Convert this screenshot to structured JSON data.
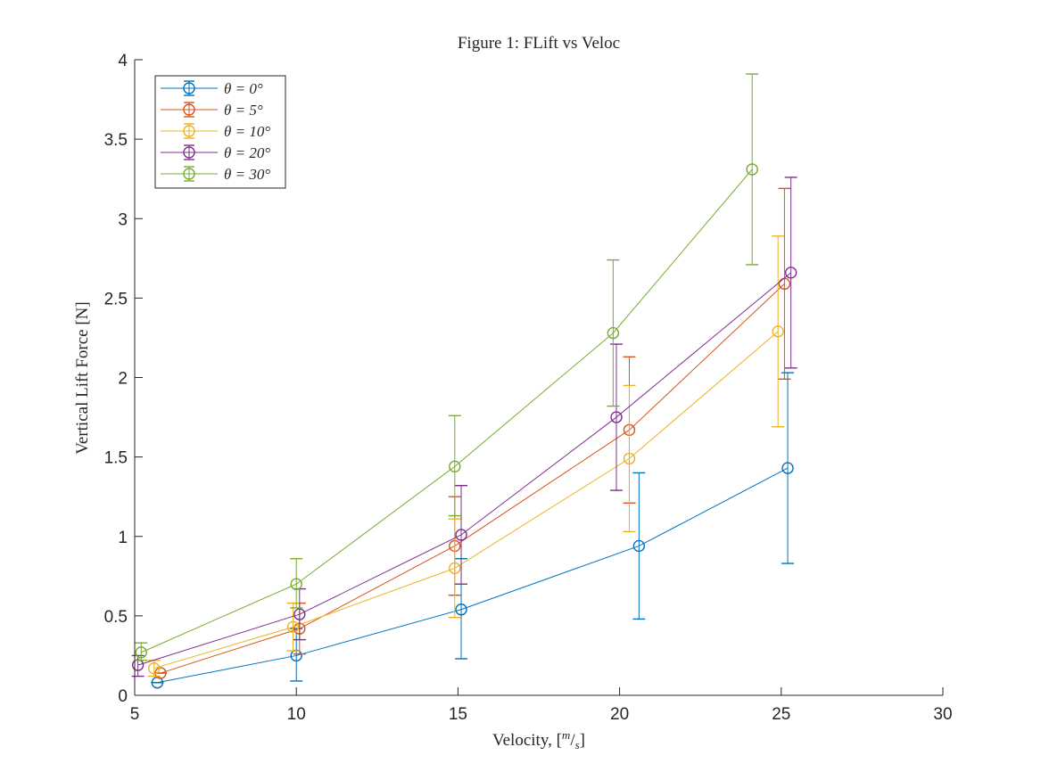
{
  "chart_data": {
    "type": "line",
    "title": "Figure 1: FLift vs Veloc",
    "xlabel": "Velocity, [m/s]",
    "xlabel_parts": {
      "main": "Velocity, [",
      "unit_num": "m",
      "unit_sep": "/",
      "unit_den": "s",
      "close": "]"
    },
    "ylabel": "Vertical Lift Force [N]",
    "xlim": [
      5,
      30
    ],
    "ylim": [
      0,
      4
    ],
    "xticks": [
      5,
      10,
      15,
      20,
      25,
      30
    ],
    "xtick_labels": [
      "5",
      "10",
      "15",
      "20",
      "25",
      "30"
    ],
    "yticks": [
      0,
      0.5,
      1,
      1.5,
      2,
      2.5,
      3,
      3.5,
      4
    ],
    "ytick_labels": [
      "0",
      "0.5",
      "1",
      "1.5",
      "2",
      "2.5",
      "3",
      "3.5",
      "4"
    ],
    "grid": false,
    "legend_position": "top-left",
    "marker": "open-circle",
    "error_bars": true,
    "series": [
      {
        "name": "θ = 0°",
        "color": "#0072BD",
        "x": [
          5.7,
          10.0,
          15.1,
          20.6,
          25.2
        ],
        "y": [
          0.08,
          0.25,
          0.54,
          0.94,
          1.43
        ],
        "err_low": [
          0.08,
          0.09,
          0.23,
          0.48,
          0.83
        ],
        "err_high": [
          0.08,
          0.42,
          0.86,
          1.4,
          2.03
        ]
      },
      {
        "name": "θ = 5°",
        "color": "#D95319",
        "x": [
          5.8,
          10.1,
          14.9,
          20.3,
          25.1
        ],
        "y": [
          0.14,
          0.42,
          0.94,
          1.67,
          2.59
        ],
        "err_low": [
          0.14,
          0.26,
          0.63,
          1.21,
          1.99
        ],
        "err_high": [
          0.14,
          0.58,
          1.25,
          2.13,
          3.19
        ]
      },
      {
        "name": "θ = 10°",
        "color": "#EDB120",
        "x": [
          5.6,
          9.9,
          14.9,
          20.3,
          24.9
        ],
        "y": [
          0.17,
          0.43,
          0.8,
          1.49,
          2.29
        ],
        "err_low": [
          0.12,
          0.28,
          0.49,
          1.03,
          1.69
        ],
        "err_high": [
          0.22,
          0.58,
          1.11,
          1.95,
          2.89
        ]
      },
      {
        "name": "θ = 20°",
        "color": "#7E2F8E",
        "x": [
          5.1,
          10.1,
          15.1,
          19.9,
          25.3
        ],
        "y": [
          0.19,
          0.51,
          1.01,
          1.75,
          2.66
        ],
        "err_low": [
          0.12,
          0.35,
          0.7,
          1.29,
          2.06
        ],
        "err_high": [
          0.25,
          0.67,
          1.32,
          2.21,
          3.26
        ]
      },
      {
        "name": "θ = 30°",
        "color": "#77AC30",
        "x": [
          5.2,
          10.0,
          14.9,
          19.8,
          24.1
        ],
        "y": [
          0.27,
          0.7,
          1.44,
          2.28,
          3.31
        ],
        "err_low": [
          0.22,
          0.55,
          1.13,
          1.82,
          2.71
        ],
        "err_high": [
          0.33,
          0.86,
          1.76,
          2.74,
          3.91
        ]
      }
    ]
  }
}
